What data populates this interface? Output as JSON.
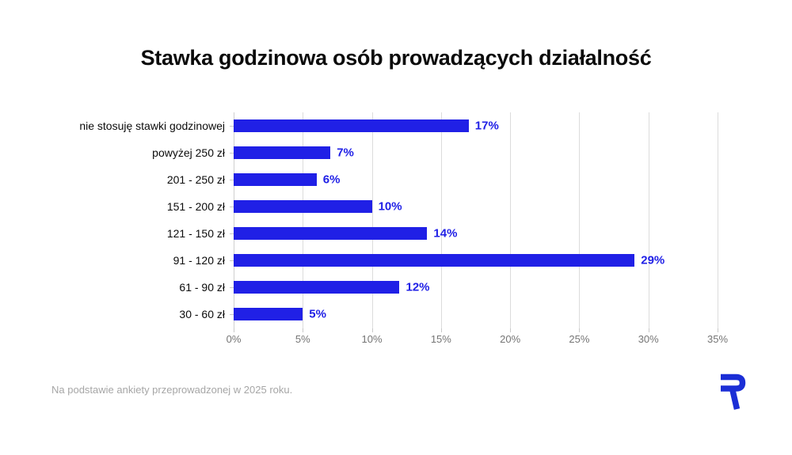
{
  "title": "Stawka godzinowa osób prowadzących działalność",
  "footer": "Na podstawie ankiety przeprowadzonej w 2025 roku.",
  "logo": {
    "icon": "r-logo",
    "color": "#1b2ed6"
  },
  "colors": {
    "bar": "#2020e6",
    "value_label": "#2020e6",
    "grid": "#dcdcdc",
    "tick": "#c9c9c9",
    "axis_label": "#757575",
    "category_label": "#0b0b0b",
    "footer_text": "#a6a6a6",
    "title_text": "#0b0b0b",
    "background": "#ffffff"
  },
  "chart_data": {
    "type": "bar",
    "orientation": "horizontal",
    "title": "Stawka godzinowa osób prowadzących działalność",
    "categories": [
      "nie stosuję stawki godzinowej",
      "powyżej 250 zł",
      "201 - 250 zł",
      "151 - 200 zł",
      "121 - 150 zł",
      "91 - 120 zł",
      "61 - 90 zł",
      "30 - 60 zł"
    ],
    "values": [
      17,
      7,
      6,
      10,
      14,
      29,
      12,
      5
    ],
    "value_labels": [
      "17%",
      "7%",
      "6%",
      "10%",
      "14%",
      "29%",
      "12%",
      "5%"
    ],
    "xlabel": "",
    "ylabel": "",
    "xlim": [
      0,
      35
    ],
    "x_tick_values": [
      0,
      5,
      10,
      15,
      20,
      25,
      30,
      35
    ],
    "x_tick_labels": [
      "0%",
      "5%",
      "10%",
      "15%",
      "20%",
      "25%",
      "30%",
      "35%"
    ],
    "grid": true,
    "legend": false
  }
}
